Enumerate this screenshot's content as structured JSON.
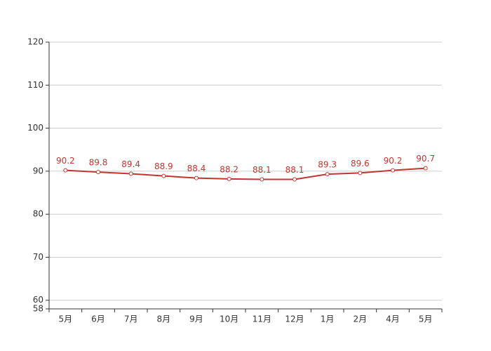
{
  "chart_data": {
    "type": "line",
    "categories": [
      "5月",
      "6月",
      "7月",
      "8月",
      "9月",
      "10月",
      "11月",
      "12月",
      "1月",
      "2月",
      "4月",
      "5月"
    ],
    "series": [
      {
        "color": "#c23531",
        "values": [
          90.2,
          89.8,
          89.4,
          88.9,
          88.4,
          88.2,
          88.1,
          88.1,
          89.3,
          89.6,
          90.2,
          90.7
        ]
      }
    ],
    "ylim": [
      58,
      120
    ],
    "yticks": [
      58,
      60,
      70,
      80,
      90,
      100,
      110,
      120
    ],
    "grid": true
  }
}
